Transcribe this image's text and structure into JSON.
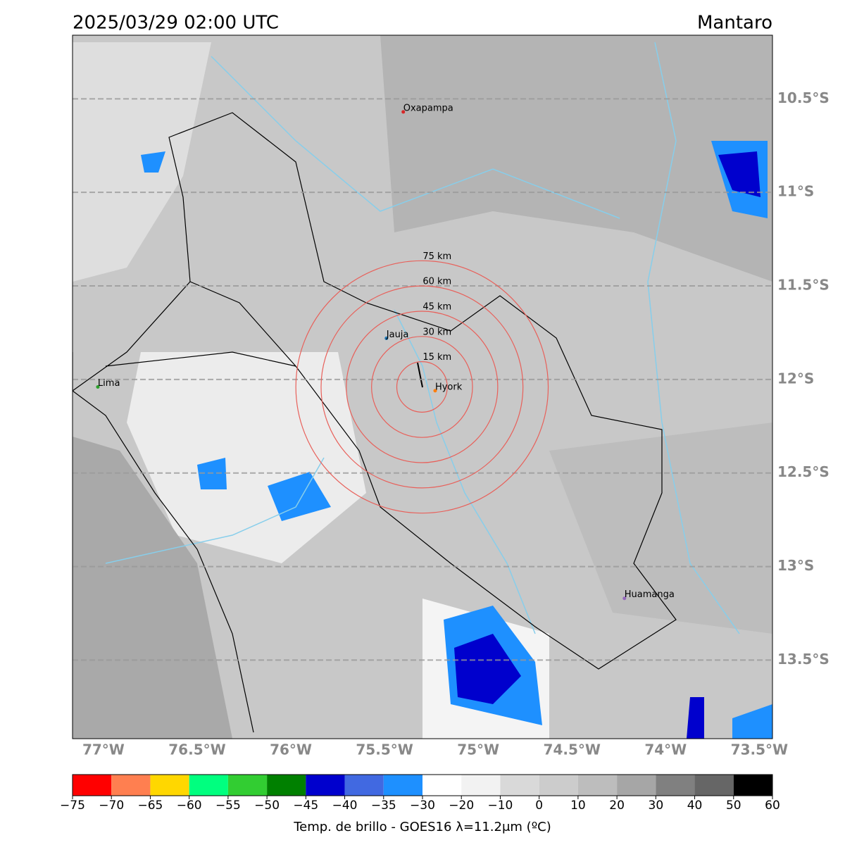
{
  "title": "2025/03/29 02:00 UTC",
  "region": "Mantaro",
  "map": {
    "lonlim": [
      -77.165,
      -73.43
    ],
    "latlim": [
      -10.16,
      -13.92
    ],
    "lonticks": [
      {
        "value": -77,
        "label": "77°W"
      },
      {
        "value": -76.5,
        "label": "76.5°W"
      },
      {
        "value": -76,
        "label": "76°W"
      },
      {
        "value": -75.5,
        "label": "75.5°W"
      },
      {
        "value": -75,
        "label": "75°W"
      },
      {
        "value": -74.5,
        "label": "74.5°W"
      },
      {
        "value": -74,
        "label": "74°W"
      },
      {
        "value": -73.5,
        "label": "73.5°W"
      }
    ],
    "latticks": [
      {
        "value": -10.5,
        "label": "10.5°S"
      },
      {
        "value": -11,
        "label": "11°S"
      },
      {
        "value": -11.5,
        "label": "11.5°S"
      },
      {
        "value": -12,
        "label": "12°S"
      },
      {
        "value": -12.5,
        "label": "12.5°S"
      },
      {
        "value": -13,
        "label": "13°S"
      },
      {
        "value": -13.5,
        "label": "13.5°S"
      }
    ],
    "cities": [
      {
        "name": "Oxapampa",
        "lon": -75.4,
        "lat": -10.57,
        "color": "#d62728"
      },
      {
        "name": "Jauja",
        "lon": -75.49,
        "lat": -11.78,
        "color": "#1f77b4"
      },
      {
        "name": "Lima",
        "lon": -77.03,
        "lat": -12.04,
        "color": "#2ca02c"
      },
      {
        "name": "Huamanga",
        "lon": -74.22,
        "lat": -13.17,
        "color": "#9467bd"
      },
      {
        "name": "Hyork",
        "lon": -75.23,
        "lat": -12.06,
        "color": "#ff7f0e"
      }
    ],
    "ring_center": {
      "lon": -75.3,
      "lat": -12.04
    },
    "rings": [
      {
        "value": 15,
        "label": "15 km"
      },
      {
        "value": 30,
        "label": "30 km"
      },
      {
        "value": 45,
        "label": "45 km"
      },
      {
        "value": 60,
        "label": "60 km"
      },
      {
        "value": 75,
        "label": "75 km"
      }
    ]
  },
  "colorbar": {
    "label": "Temp. de brillo - GOES16 λ=11.2μm (ºC)",
    "ticks": [
      {
        "value": -75,
        "label": "−75"
      },
      {
        "value": -70,
        "label": "−70"
      },
      {
        "value": -65,
        "label": "−65"
      },
      {
        "value": -60,
        "label": "−60"
      },
      {
        "value": -55,
        "label": "−55"
      },
      {
        "value": -50,
        "label": "−50"
      },
      {
        "value": -45,
        "label": "−45"
      },
      {
        "value": -40,
        "label": "−40"
      },
      {
        "value": -35,
        "label": "−35"
      },
      {
        "value": -30,
        "label": "−30"
      },
      {
        "value": -20,
        "label": "−20"
      },
      {
        "value": -10,
        "label": "−10"
      },
      0,
      10,
      20,
      30,
      40,
      50,
      60
    ],
    "colors": [
      "#ff0000",
      "#ff7f50",
      "#ffd700",
      "#00ff7f",
      "#32cd32",
      "#008000",
      "#0000cd",
      "#4169e1",
      "#1e90ff",
      "#ffffff",
      "#f2f2f2",
      "#d9d9d9",
      "#cccccc",
      "#bdbdbd",
      "#a6a6a6",
      "#808080",
      "#666666",
      "#000000"
    ]
  }
}
